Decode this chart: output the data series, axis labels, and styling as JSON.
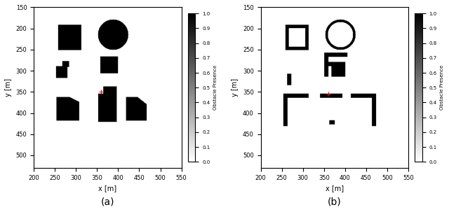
{
  "xlim": [
    200,
    550
  ],
  "ylim": [
    150,
    530
  ],
  "xticks": [
    200,
    250,
    300,
    350,
    400,
    450,
    500,
    550
  ],
  "yticks": [
    150,
    200,
    250,
    300,
    350,
    400,
    450,
    500
  ],
  "xlabel": "x [m]",
  "ylabel": "y [m]",
  "colorbar_label_a": "Obstacle Presence",
  "colorbar_label_b": "Obstacle Presence",
  "subplot_a_label": "(a)",
  "subplot_b_label": "(b)",
  "background_color": "#ffffff",
  "red_marker_a": [
    360,
    350
  ],
  "red_marker_b": [
    360,
    355
  ]
}
